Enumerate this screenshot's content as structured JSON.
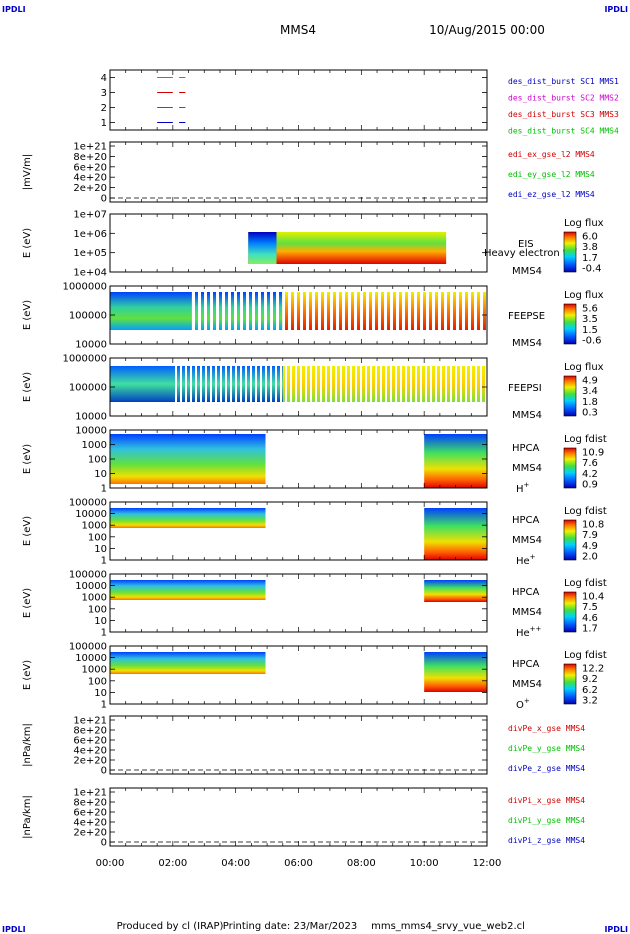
{
  "header": {
    "corner_label": "IPDLI",
    "spacecraft": "MMS4",
    "datetime": "10/Aug/2015 00:00"
  },
  "footer": {
    "produced_by": "Produced by cl (IRAP)",
    "printing_date": "Printing date: 23/Mar/2023",
    "script_name": "mms_mms4_srvy_vue_web2.cl"
  },
  "xaxis": {
    "ticks": [
      "00:00",
      "02:00",
      "04:00",
      "06:00",
      "08:00",
      "10:00",
      "12:00"
    ],
    "range_hours": [
      0,
      12
    ]
  },
  "colors": {
    "sc1": "#0000c0",
    "sc2": "#d000d0",
    "sc3": "#d00000",
    "sc4": "#00c000",
    "x": "#d00000",
    "y": "#00c000",
    "z": "#0000c0"
  },
  "chart_data": [
    {
      "type": "line",
      "ylabel": "",
      "yticks": [
        "4",
        "3",
        "2",
        "1"
      ],
      "ylim": [
        0.5,
        4.5
      ],
      "legend": [
        {
          "text": "des_dist_burst SC1 MMS1",
          "color": "#0000c0"
        },
        {
          "text": "des_dist_burst SC2 MMS2",
          "color": "#d000d0"
        },
        {
          "text": "des_dist_burst SC3 MMS3",
          "color": "#d00000"
        },
        {
          "text": "des_dist_burst SC4 MMS4",
          "color": "#00c000"
        }
      ],
      "series": [
        {
          "color": "#00c000",
          "y": 4,
          "x": [
            [
              1.5,
              2.0
            ],
            [
              2.2,
              2.4
            ]
          ]
        },
        {
          "color": "#d00000",
          "y": 3,
          "x": [
            [
              1.5,
              2.0
            ],
            [
              2.2,
              2.4
            ]
          ]
        },
        {
          "color": "#d000d0",
          "y": 2,
          "x": [
            [
              1.5,
              2.0
            ],
            [
              2.2,
              2.4
            ]
          ]
        },
        {
          "color": "#0000c0",
          "y": 1,
          "x": [
            [
              1.5,
              2.0
            ],
            [
              2.2,
              2.4
            ]
          ]
        }
      ]
    },
    {
      "type": "line",
      "ylabel": "|mV/m|",
      "yticks": [
        "1e+21",
        "8e+20",
        "6e+20",
        "4e+20",
        "2e+20",
        "0"
      ],
      "legend": [
        {
          "text": "edi_ex_gse_l2 MMS4",
          "color": "#d00000"
        },
        {
          "text": "edi_ey_gse_l2 MMS4",
          "color": "#00c000"
        },
        {
          "text": "edi_ez_gse_l2 MMS4",
          "color": "#0000c0"
        }
      ]
    },
    {
      "type": "heatmap",
      "ylabel": "E (eV)",
      "yticks": [
        "1e+07",
        "1e+06",
        "1e+05",
        "1e+04"
      ],
      "instrument": "EIS",
      "species": "Heavy electron tof",
      "spacecraft": "MMS4",
      "colorbar": {
        "title": "Log flux",
        "ticks": [
          "6.0",
          "3.8",
          "1.7",
          "-0.4"
        ]
      },
      "coverage_hours": [
        4.4,
        10.7
      ]
    },
    {
      "type": "heatmap",
      "ylabel": "E (eV)",
      "yticks": [
        "1000000",
        "100000",
        "10000"
      ],
      "instrument": "FEEPSE",
      "spacecraft": "MMS4",
      "colorbar": {
        "title": "Log flux",
        "ticks": [
          "5.6",
          "3.5",
          "1.5",
          "-0.6"
        ]
      },
      "coverage_hours": [
        0,
        12
      ]
    },
    {
      "type": "heatmap",
      "ylabel": "E (eV)",
      "yticks": [
        "1000000",
        "100000",
        "10000"
      ],
      "instrument": "FEEPSI",
      "spacecraft": "MMS4",
      "colorbar": {
        "title": "Log flux",
        "ticks": [
          "4.9",
          "3.4",
          "1.8",
          "0.3"
        ]
      },
      "coverage_hours": [
        0,
        12
      ]
    },
    {
      "type": "heatmap",
      "ylabel": "E (eV)",
      "yticks": [
        "10000",
        "1000",
        "100",
        "10",
        "1"
      ],
      "instrument": "HPCA",
      "spacecraft": "MMS4",
      "species_base": "H",
      "species_charge": "+",
      "colorbar": {
        "title": "Log fdist",
        "ticks": [
          "10.9",
          "7.6",
          "4.2",
          "0.9"
        ]
      },
      "coverage_hours": [
        [
          0,
          4.95
        ],
        [
          10.0,
          12
        ]
      ]
    },
    {
      "type": "heatmap",
      "ylabel": "E (eV)",
      "yticks": [
        "100000",
        "10000",
        "1000",
        "100",
        "10",
        "1"
      ],
      "instrument": "HPCA",
      "spacecraft": "MMS4",
      "species_base": "He",
      "species_charge": "+",
      "colorbar": {
        "title": "Log fdist",
        "ticks": [
          "10.8",
          "7.9",
          "4.9",
          "2.0"
        ]
      },
      "coverage_hours": [
        [
          0,
          4.95
        ],
        [
          10.0,
          12
        ]
      ]
    },
    {
      "type": "heatmap",
      "ylabel": "E (eV)",
      "yticks": [
        "100000",
        "10000",
        "1000",
        "100",
        "10",
        "1"
      ],
      "instrument": "HPCA",
      "spacecraft": "MMS4",
      "species_base": "He",
      "species_charge": "++",
      "colorbar": {
        "title": "Log fdist",
        "ticks": [
          "10.4",
          "7.5",
          "4.6",
          "1.7"
        ]
      },
      "coverage_hours": [
        [
          0,
          4.95
        ],
        [
          10.0,
          12
        ]
      ]
    },
    {
      "type": "heatmap",
      "ylabel": "E (eV)",
      "yticks": [
        "100000",
        "10000",
        "1000",
        "100",
        "10",
        "1"
      ],
      "instrument": "HPCA",
      "spacecraft": "MMS4",
      "species_base": "O",
      "species_charge": "+",
      "colorbar": {
        "title": "Log fdist",
        "ticks": [
          "12.2",
          "9.2",
          "6.2",
          "3.2"
        ]
      },
      "coverage_hours": [
        [
          0,
          4.95
        ],
        [
          10.0,
          12
        ]
      ]
    },
    {
      "type": "line",
      "ylabel": "|nPa/km|",
      "yticks": [
        "1e+21",
        "8e+20",
        "6e+20",
        "4e+20",
        "2e+20",
        "0"
      ],
      "legend": [
        {
          "text": "divPe_x_gse MMS4",
          "color": "#d00000"
        },
        {
          "text": "divPe_y_gse MMS4",
          "color": "#00c000"
        },
        {
          "text": "divPe_z_gse MMS4",
          "color": "#0000c0"
        }
      ]
    },
    {
      "type": "line",
      "ylabel": "|nPa/km|",
      "yticks": [
        "1e+21",
        "8e+20",
        "6e+20",
        "4e+20",
        "2e+20",
        "0"
      ],
      "legend": [
        {
          "text": "divPi_x_gse MMS4",
          "color": "#d00000"
        },
        {
          "text": "divPi_y_gse MMS4",
          "color": "#00c000"
        },
        {
          "text": "divPi_z_gse MMS4",
          "color": "#0000c0"
        }
      ]
    }
  ]
}
